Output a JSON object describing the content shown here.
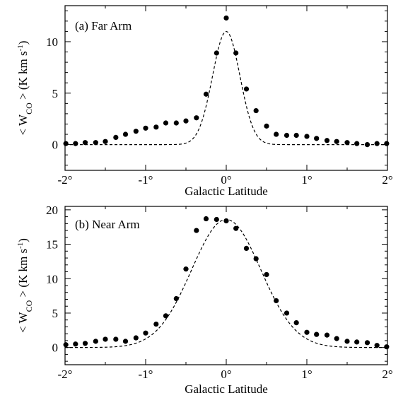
{
  "chart_data": [
    {
      "type": "scatter",
      "panel_label": "(a) Far Arm",
      "xlabel": "Galactic Latitude",
      "ylabel_html": [
        "< W",
        "CO",
        " >  (K km s",
        "-1",
        ")"
      ],
      "xlim": [
        -2,
        2
      ],
      "ylim": [
        -2.5,
        13.5
      ],
      "x_ticks": [
        -2,
        -1,
        0,
        1,
        2
      ],
      "x_tick_labels": [
        "-2°",
        "-1°",
        "0°",
        "1°",
        "2°"
      ],
      "y_ticks": [
        0,
        5,
        10
      ],
      "y_tick_labels": [
        "0",
        "5",
        "10"
      ],
      "series": [
        {
          "style": "points",
          "x": [
            -1.99,
            -1.87,
            -1.75,
            -1.62,
            -1.5,
            -1.37,
            -1.25,
            -1.12,
            -1.0,
            -0.87,
            -0.75,
            -0.62,
            -0.5,
            -0.37,
            -0.25,
            -0.12,
            0.0,
            0.12,
            0.25,
            0.37,
            0.5,
            0.62,
            0.75,
            0.87,
            1.0,
            1.12,
            1.25,
            1.37,
            1.5,
            1.62,
            1.75,
            1.87,
            1.99
          ],
          "y": [
            0.1,
            0.1,
            0.2,
            0.2,
            0.3,
            0.7,
            1.0,
            1.3,
            1.6,
            1.7,
            2.1,
            2.1,
            2.3,
            2.6,
            4.9,
            8.9,
            12.3,
            8.9,
            5.4,
            3.3,
            1.8,
            1.0,
            0.9,
            0.9,
            0.8,
            0.6,
            0.4,
            0.3,
            0.2,
            0.1,
            0.0,
            0.1,
            0.1
          ]
        },
        {
          "style": "dashed",
          "model": "gaussian",
          "amplitude": 11.0,
          "center": 0.0,
          "sigma": 0.17
        }
      ]
    },
    {
      "type": "scatter",
      "panel_label": "(b) Near Arm",
      "xlabel": "Galactic Latitude",
      "ylabel_html": [
        "< W",
        "CO",
        " >  (K km s",
        "-1",
        ")"
      ],
      "xlim": [
        -2,
        2
      ],
      "ylim": [
        -2.5,
        20.5
      ],
      "x_ticks": [
        -2,
        -1,
        0,
        1,
        2
      ],
      "x_tick_labels": [
        "-2°",
        "-1°",
        "0°",
        "1°",
        "2°"
      ],
      "y_ticks": [
        0,
        5,
        10,
        15,
        20
      ],
      "y_tick_labels": [
        "0",
        "5",
        "10",
        "15",
        "20"
      ],
      "series": [
        {
          "style": "points",
          "x": [
            -1.99,
            -1.87,
            -1.75,
            -1.62,
            -1.5,
            -1.37,
            -1.25,
            -1.12,
            -1.0,
            -0.87,
            -0.75,
            -0.62,
            -0.5,
            -0.37,
            -0.25,
            -0.12,
            0.0,
            0.12,
            0.25,
            0.37,
            0.5,
            0.62,
            0.75,
            0.87,
            1.0,
            1.12,
            1.25,
            1.37,
            1.5,
            1.62,
            1.75,
            1.87,
            1.99
          ],
          "y": [
            0.4,
            0.5,
            0.6,
            0.9,
            1.2,
            1.2,
            0.9,
            1.4,
            2.1,
            3.4,
            4.6,
            7.1,
            11.4,
            17.0,
            18.7,
            18.6,
            18.4,
            17.3,
            14.4,
            12.9,
            10.6,
            6.8,
            5.0,
            3.6,
            2.2,
            1.9,
            1.8,
            1.3,
            0.9,
            0.8,
            0.7,
            0.3,
            0.1
          ]
        },
        {
          "style": "dashed",
          "model": "gaussian",
          "amplitude": 18.6,
          "center": 0.0,
          "sigma": 0.43
        }
      ]
    }
  ],
  "colors": {
    "ink": "#000000",
    "background": "#ffffff"
  }
}
